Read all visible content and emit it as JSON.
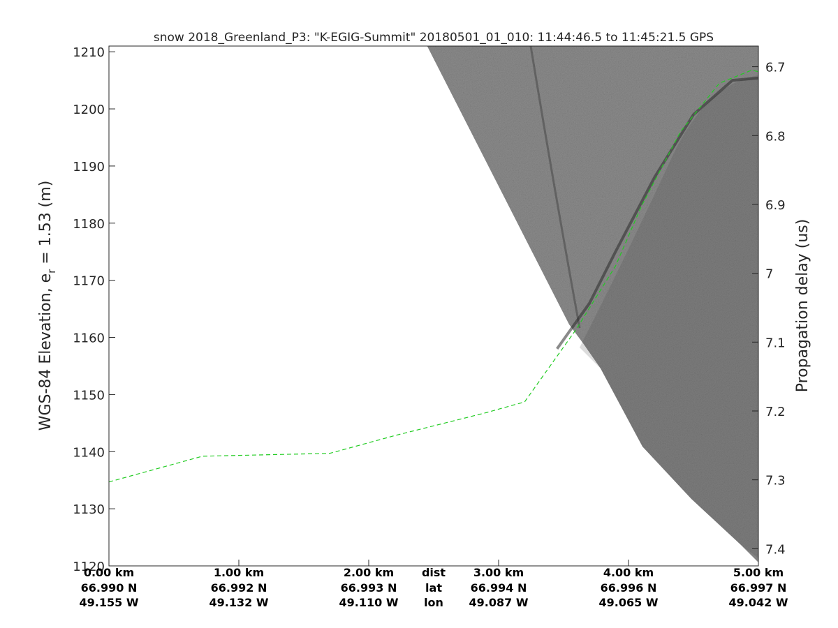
{
  "chart_data": {
    "type": "line",
    "title": "snow 2018_Greenland_P3: \"K-EGIG-Summit\"  20180501_01_010: 11:44:46.5 to 11:45:21.5 GPS",
    "ylabel_main": "WGS-84 Elevation, e",
    "ylabel_sub": "r",
    "ylabel_tail": " = 1.53 (m)",
    "ylabel_right": "Propagation delay (us)",
    "ylim": [
      1120,
      1211
    ],
    "ylim_right": [
      6.67,
      7.425
    ],
    "xlim": [
      0,
      5
    ],
    "yticks": [
      1120,
      1130,
      1140,
      1150,
      1160,
      1170,
      1180,
      1190,
      1200,
      1210
    ],
    "yticks_right": [
      "6.7",
      "6.8",
      "6.9",
      "7",
      "7.1",
      "7.2",
      "7.3",
      "7.4"
    ],
    "x_rows": {
      "dist": [
        "0.00 km",
        "1.00 km",
        "2.00 km",
        "3.00 km",
        "4.00 km",
        "5.00 km"
      ],
      "lat": [
        "66.990 N",
        "66.992 N",
        "66.993 N",
        "66.994 N",
        "66.996 N",
        "66.997 N"
      ],
      "lon": [
        "49.155 W",
        "49.132 W",
        "49.110 W",
        "49.087 W",
        "49.065 W",
        "49.042 W"
      ],
      "row_labels": [
        "dist",
        "lat",
        "lon"
      ]
    },
    "series": [
      {
        "color": "#22cc22",
        "style": "dashed",
        "x": [
          0,
          0.72,
          1.7,
          2.2,
          2.9,
          3.2,
          3.6,
          3.9,
          4.1,
          4.4,
          4.7,
          4.95,
          5.0
        ],
        "y": [
          1134.7,
          1139.2,
          1139.7,
          1142.8,
          1146.8,
          1148.7,
          1161.5,
          1172.5,
          1183.0,
          1196.0,
          1204.5,
          1206.8,
          1206.5
        ]
      }
    ],
    "radargram": {
      "color": "#8c8c8c",
      "top_edge_x": 2.45,
      "layer_surface": {
        "x": [
          3.45,
          3.7,
          3.9,
          4.2,
          4.5,
          4.8,
          5.0
        ],
        "y": [
          1158.0,
          1166.0,
          1175.0,
          1188.0,
          1199.0,
          1205.0,
          1205.4
        ]
      }
    }
  }
}
